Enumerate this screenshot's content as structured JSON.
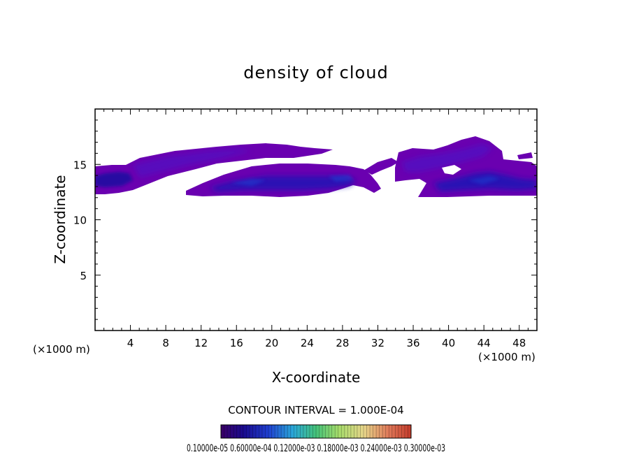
{
  "chart_data": {
    "type": "heatmap",
    "title": "density of cloud",
    "xlabel": "X-coordinate",
    "ylabel": "Z-coordinate",
    "x_unit": "(×1000 m)",
    "x_unit_right": "(×1000 m)",
    "xlim": [
      0,
      50
    ],
    "ylim": [
      0,
      20
    ],
    "x_ticks": [
      4,
      8,
      12,
      16,
      20,
      24,
      28,
      32,
      36,
      40,
      44,
      48
    ],
    "y_ticks": [
      5,
      10,
      15
    ],
    "x_tick_labels": [
      "4",
      "8",
      "12",
      "16",
      "20",
      "24",
      "28",
      "32",
      "36",
      "40",
      "44",
      "48"
    ],
    "y_tick_labels": [
      "5",
      "10",
      "15"
    ],
    "contour_interval_text": "CONTOUR INTERVAL = 1.000E-04",
    "colorbar_labels_text": "0.10000e-05 0.60000e-04 0.12000e-03 0.18000e-03 0.24000e-03 0.30000e-03",
    "colorbar_labels": [
      "0.10000e-05",
      "0.60000e-04",
      "0.12000e-03",
      "0.18000e-03",
      "0.24000e-03",
      "0.30000e-03"
    ],
    "colorbar_range": [
      1e-06,
      0.0003
    ],
    "colormap": [
      "#3a0066",
      "#1a0b8f",
      "#1f3fd0",
      "#2aa8d8",
      "#44c27a",
      "#a6dc6a",
      "#e6d68a",
      "#e07a5a",
      "#c43a2a"
    ],
    "cloud_bands": [
      {
        "name": "upper-left band",
        "x_range": [
          0,
          27
        ],
        "z_top": 16.7,
        "z_bottom": 12.5,
        "peak_density": 8e-05
      },
      {
        "name": "middle band",
        "x_range": [
          10.5,
          32
        ],
        "z_top": 15.0,
        "z_bottom": 12.3,
        "peak_density": 0.00012
      },
      {
        "name": "right band",
        "x_range": [
          32,
          50
        ],
        "z_top": 17.5,
        "z_bottom": 12.3,
        "peak_density": 0.00012
      }
    ]
  }
}
